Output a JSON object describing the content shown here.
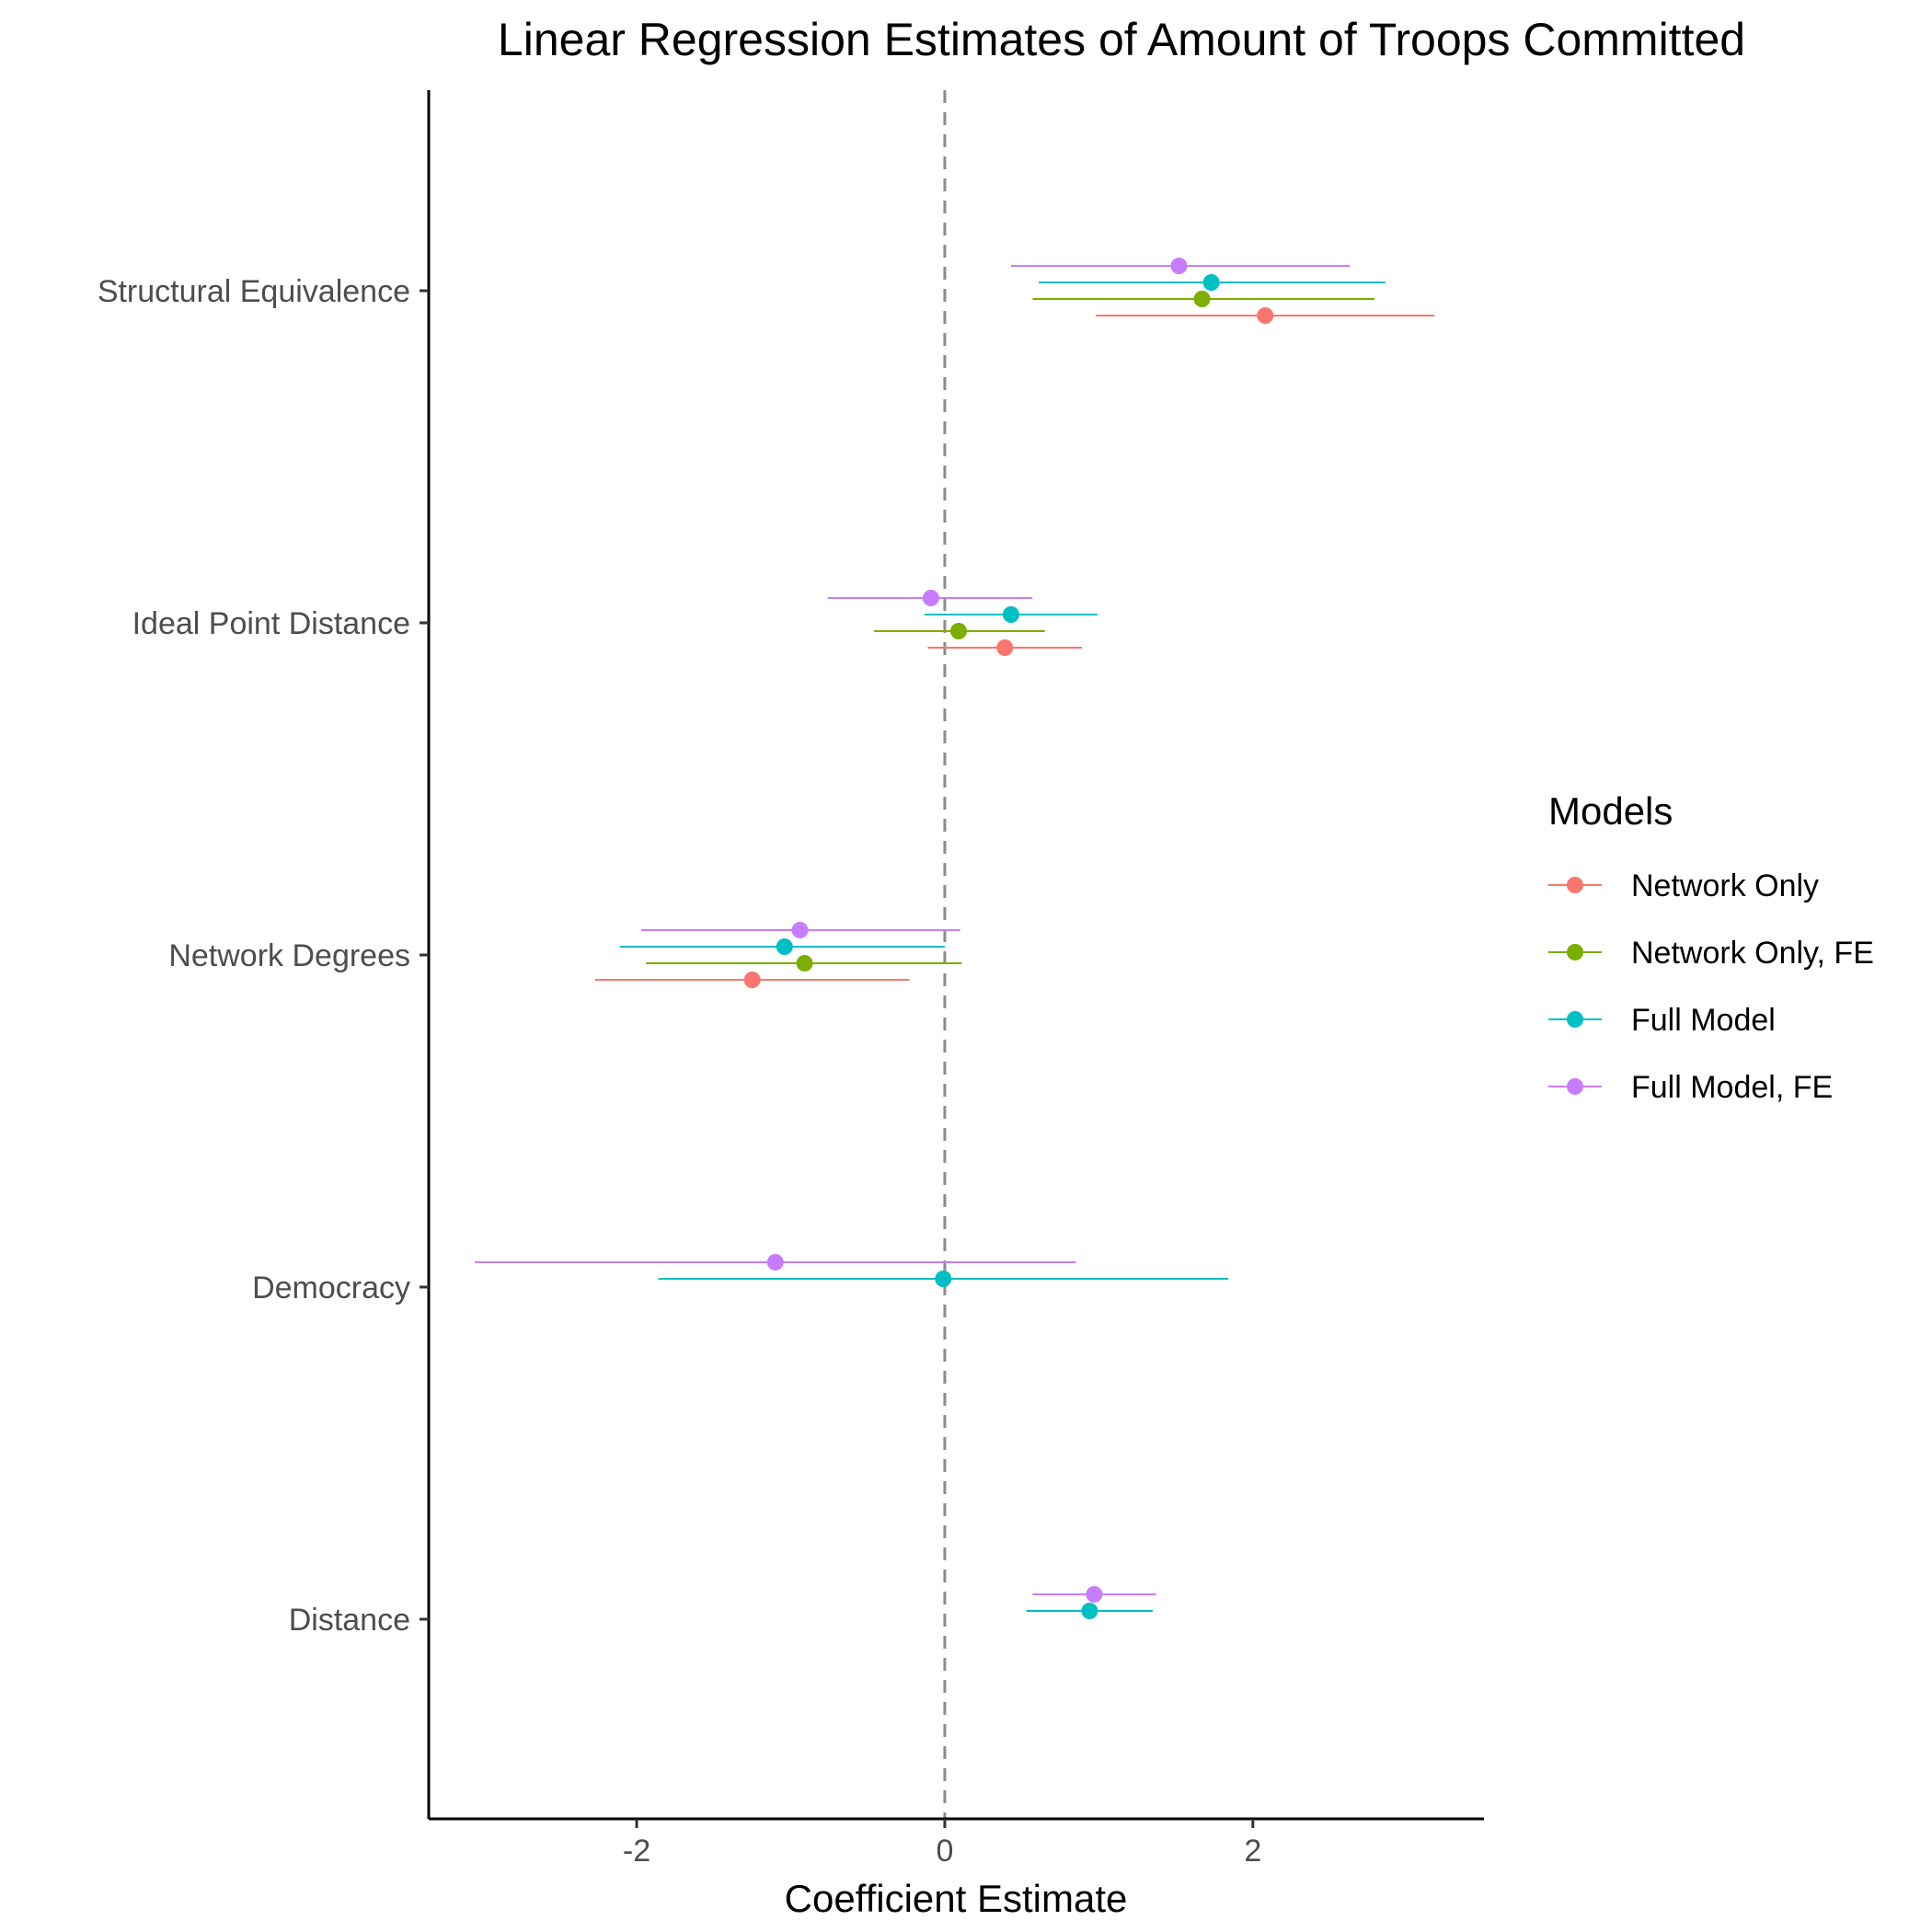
{
  "chart_data": {
    "type": "scatter",
    "title": "Linear Regression Estimates of Amount of Troops Committed",
    "xlabel": "Coefficient Estimate",
    "ylabel": "",
    "xlim": [
      -3.35,
      3.5
    ],
    "x_ticks": [
      -2,
      0,
      2
    ],
    "x_tick_labels": [
      "-2",
      "0",
      "2"
    ],
    "reference_line": {
      "x": 0,
      "style": "dashed"
    },
    "grid": false,
    "categories": [
      "Structural Equivalence",
      "Ideal Point Distance",
      "Network Degrees",
      "Democracy",
      "Distance"
    ],
    "legend": {
      "title": "Models",
      "position": "right"
    },
    "series": [
      {
        "name": "Network Only",
        "color": "#F8766D",
        "points": [
          {
            "category": "Structural Equivalence",
            "estimate": 2.08,
            "low": 0.98,
            "high": 3.18
          },
          {
            "category": "Ideal Point Distance",
            "estimate": 0.39,
            "low": -0.11,
            "high": 0.89
          },
          {
            "category": "Network Degrees",
            "estimate": -1.25,
            "low": -2.27,
            "high": -0.23
          }
        ]
      },
      {
        "name": "Network Only, FE",
        "color": "#7CAE00",
        "points": [
          {
            "category": "Structural Equivalence",
            "estimate": 1.67,
            "low": 0.57,
            "high": 2.79
          },
          {
            "category": "Ideal Point Distance",
            "estimate": 0.09,
            "low": -0.46,
            "high": 0.65
          },
          {
            "category": "Network Degrees",
            "estimate": -0.91,
            "low": -1.94,
            "high": 0.11
          }
        ]
      },
      {
        "name": "Full Model",
        "color": "#00BFC4",
        "points": [
          {
            "category": "Structural Equivalence",
            "estimate": 1.73,
            "low": 0.61,
            "high": 2.86
          },
          {
            "category": "Ideal Point Distance",
            "estimate": 0.43,
            "low": -0.13,
            "high": 0.99
          },
          {
            "category": "Network Degrees",
            "estimate": -1.04,
            "low": -2.11,
            "high": 0.0
          },
          {
            "category": "Democracy",
            "estimate": -0.01,
            "low": -1.86,
            "high": 1.84
          },
          {
            "category": "Distance",
            "estimate": 0.94,
            "low": 0.53,
            "high": 1.35
          }
        ]
      },
      {
        "name": "Full Model, FE",
        "color": "#C77CFF",
        "points": [
          {
            "category": "Structural Equivalence",
            "estimate": 1.52,
            "low": 0.43,
            "high": 2.63
          },
          {
            "category": "Ideal Point Distance",
            "estimate": -0.09,
            "low": -0.76,
            "high": 0.57
          },
          {
            "category": "Network Degrees",
            "estimate": -0.94,
            "low": -1.97,
            "high": 0.1
          },
          {
            "category": "Democracy",
            "estimate": -1.1,
            "low": -3.05,
            "high": 0.85
          },
          {
            "category": "Distance",
            "estimate": 0.97,
            "low": 0.57,
            "high": 1.37
          }
        ]
      }
    ]
  }
}
